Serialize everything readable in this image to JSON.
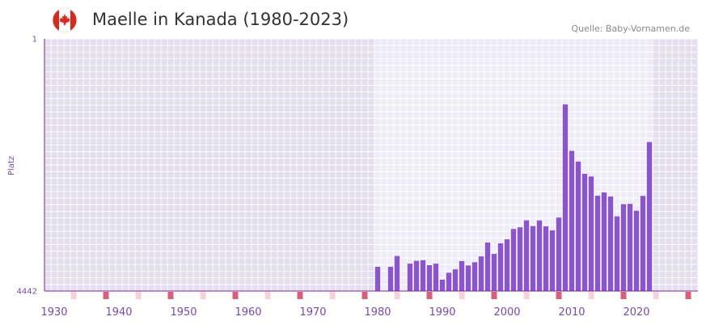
{
  "header": {
    "title": "Maelle in Kanada (1980-2023)",
    "source": "Quelle: Baby-Vornamen.de",
    "flag_icon": "canada-flag-icon"
  },
  "colors": {
    "bar": "#8a55c9",
    "axis": "#7a2a8a",
    "grid_bg_outer": "#e3dfee",
    "grid_bg_inner": "#efecf8",
    "grid_line": "#ffffff",
    "decade_marker": "#d96078",
    "half_decade_marker": "#f6d2dc",
    "flag_red": "#d52b1e"
  },
  "chart_data": {
    "type": "bar",
    "title": "Maelle in Kanada (1980-2023)",
    "xlabel": "",
    "ylabel": "Platz",
    "y_inverted": true,
    "ylim": [
      1,
      4442
    ],
    "y_ticks": [
      1,
      4442
    ],
    "xlim": [
      1928.5,
      2029.5
    ],
    "x_ticks": [
      1930,
      1940,
      1950,
      1960,
      1970,
      1980,
      1990,
      2000,
      2010,
      2020
    ],
    "highlight_range": [
      1979.5,
      2022.5
    ],
    "grid": true,
    "x": [
      1980,
      1982,
      1983,
      1985,
      1986,
      1987,
      1988,
      1989,
      1990,
      1991,
      1992,
      1993,
      1994,
      1995,
      1996,
      1997,
      1998,
      1999,
      2000,
      2001,
      2002,
      2003,
      2004,
      2005,
      2006,
      2007,
      2008,
      2009,
      2010,
      2011,
      2012,
      2013,
      2014,
      2015,
      2016,
      2017,
      2018,
      2019,
      2020,
      2021,
      2022
    ],
    "values": [
      4015,
      4015,
      3825,
      3960,
      3910,
      3900,
      3987,
      3960,
      4242,
      4120,
      4060,
      3915,
      3992,
      3935,
      3832,
      3588,
      3788,
      3602,
      3530,
      3349,
      3320,
      3197,
      3298,
      3199,
      3302,
      3374,
      3149,
      1157,
      1974,
      2162,
      2378,
      2425,
      2764,
      2706,
      2778,
      3127,
      2913,
      2908,
      3029,
      2767,
      1819
    ]
  }
}
